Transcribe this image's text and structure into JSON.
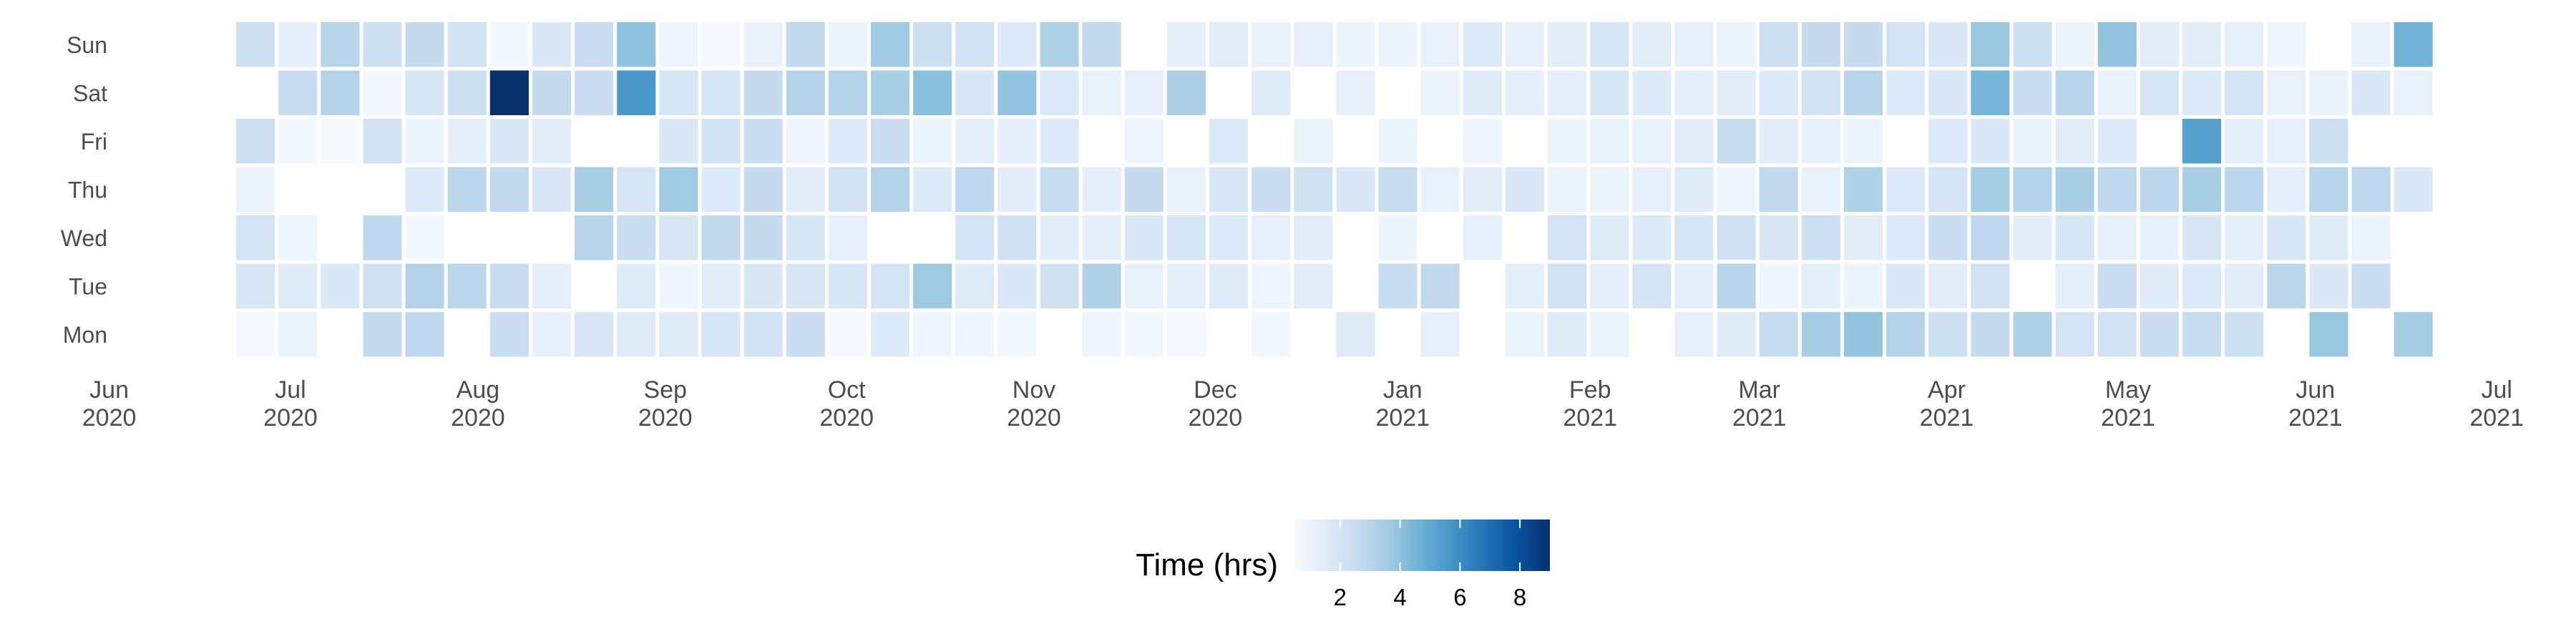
{
  "chart_data": {
    "type": "heatmap",
    "title": "",
    "rows": [
      "Sun",
      "Sat",
      "Fri",
      "Thu",
      "Wed",
      "Tue",
      "Mon"
    ],
    "x_ticks": [
      {
        "month": "Jun",
        "year": "2020",
        "date": "2020-06-01"
      },
      {
        "month": "Jul",
        "year": "2020",
        "date": "2020-07-01"
      },
      {
        "month": "Aug",
        "year": "2020",
        "date": "2020-08-01"
      },
      {
        "month": "Sep",
        "year": "2020",
        "date": "2020-09-01"
      },
      {
        "month": "Oct",
        "year": "2020",
        "date": "2020-10-01"
      },
      {
        "month": "Nov",
        "year": "2020",
        "date": "2020-11-01"
      },
      {
        "month": "Dec",
        "year": "2020",
        "date": "2020-12-01"
      },
      {
        "month": "Jan",
        "year": "2021",
        "date": "2021-01-01"
      },
      {
        "month": "Feb",
        "year": "2021",
        "date": "2021-02-01"
      },
      {
        "month": "Mar",
        "year": "2021",
        "date": "2021-03-01"
      },
      {
        "month": "Apr",
        "year": "2021",
        "date": "2021-04-01"
      },
      {
        "month": "May",
        "year": "2021",
        "date": "2021-05-01"
      },
      {
        "month": "Jun",
        "year": "2021",
        "date": "2021-06-01"
      },
      {
        "month": "Jul",
        "year": "2021",
        "date": "2021-07-01"
      }
    ],
    "week_starts": [
      "2020-06-22",
      "2020-06-29",
      "2020-07-06",
      "2020-07-13",
      "2020-07-20",
      "2020-07-27",
      "2020-08-03",
      "2020-08-10",
      "2020-08-17",
      "2020-08-24",
      "2020-08-31",
      "2020-09-07",
      "2020-09-14",
      "2020-09-21",
      "2020-09-28",
      "2020-10-05",
      "2020-10-12",
      "2020-10-19",
      "2020-10-26",
      "2020-11-02",
      "2020-11-09",
      "2020-11-16",
      "2020-11-23",
      "2020-11-30",
      "2020-12-07",
      "2020-12-14",
      "2020-12-21",
      "2020-12-28",
      "2021-01-04",
      "2021-01-11",
      "2021-01-18",
      "2021-01-25",
      "2021-02-01",
      "2021-02-08",
      "2021-02-15",
      "2021-02-22",
      "2021-03-01",
      "2021-03-08",
      "2021-03-15",
      "2021-03-22",
      "2021-03-29",
      "2021-04-05",
      "2021-04-12",
      "2021-04-19",
      "2021-04-26",
      "2021-05-03",
      "2021-05-10",
      "2021-05-17",
      "2021-05-24",
      "2021-05-31",
      "2021-06-07",
      "2021-06-14"
    ],
    "values": [
      [
        2.3,
        1.3,
        3.0,
        2.3,
        2.6,
        2.1,
        0.7,
        1.7,
        2.4,
        4.0,
        0.9,
        0.6,
        1.1,
        2.7,
        1.0,
        3.6,
        2.3,
        2.1,
        1.6,
        3.2,
        2.7,
        null,
        1.3,
        1.4,
        1.1,
        1.2,
        1.0,
        1.0,
        1.1,
        1.6,
        1.2,
        1.4,
        1.9,
        1.4,
        1.2,
        1.0,
        2.3,
        2.6,
        2.6,
        2.0,
        1.7,
        3.8,
        2.3,
        1.0,
        3.9,
        1.4,
        1.4,
        1.2,
        0.8,
        null,
        1.1,
        4.6
      ],
      [
        null,
        2.5,
        3.1,
        0.7,
        1.9,
        2.3,
        9.0,
        2.6,
        2.4,
        5.6,
        1.9,
        1.9,
        2.6,
        3.1,
        3.1,
        3.4,
        4.1,
        1.8,
        3.9,
        1.6,
        1.1,
        1.2,
        3.3,
        null,
        1.5,
        null,
        1.2,
        null,
        1.0,
        1.5,
        1.3,
        1.3,
        1.9,
        1.6,
        1.3,
        1.4,
        1.6,
        2.1,
        3.0,
        1.6,
        1.7,
        4.5,
        2.4,
        3.0,
        1.1,
        1.9,
        1.6,
        2.0,
        1.1,
        1.1,
        1.7,
        1.1
      ],
      [
        2.3,
        0.7,
        0.6,
        2.1,
        1.0,
        1.3,
        1.7,
        1.4,
        null,
        null,
        1.7,
        2.1,
        2.4,
        0.9,
        1.6,
        2.4,
        1.0,
        1.3,
        1.3,
        1.6,
        null,
        0.9,
        null,
        1.6,
        null,
        1.0,
        null,
        1.0,
        null,
        0.9,
        null,
        1.0,
        1.1,
        1.1,
        1.4,
        2.5,
        1.4,
        1.2,
        1.0,
        null,
        1.6,
        1.7,
        1.1,
        1.4,
        1.6,
        null,
        5.3,
        1.3,
        1.2,
        2.3,
        null,
        null
      ],
      [
        1.0,
        null,
        null,
        null,
        1.6,
        2.9,
        2.7,
        1.8,
        3.4,
        1.9,
        3.6,
        1.6,
        2.6,
        1.4,
        2.1,
        3.1,
        1.6,
        2.8,
        1.4,
        2.5,
        1.3,
        2.6,
        1.1,
        1.8,
        2.4,
        2.2,
        1.7,
        2.5,
        1.1,
        1.4,
        1.7,
        1.0,
        1.0,
        1.2,
        1.5,
        0.9,
        2.7,
        1.1,
        3.2,
        1.6,
        2.0,
        3.5,
        3.1,
        3.4,
        2.8,
        2.9,
        3.4,
        2.9,
        1.3,
        3.0,
        2.8,
        1.7
      ],
      [
        2.0,
        0.9,
        null,
        2.8,
        0.7,
        null,
        null,
        null,
        3.0,
        2.4,
        1.8,
        2.7,
        2.6,
        1.9,
        1.2,
        null,
        null,
        2.0,
        2.2,
        1.4,
        1.3,
        1.7,
        1.9,
        1.6,
        1.2,
        1.4,
        null,
        1.0,
        null,
        1.2,
        null,
        2.0,
        1.5,
        1.6,
        1.9,
        2.2,
        1.8,
        2.3,
        1.4,
        1.6,
        2.4,
        2.8,
        1.4,
        1.9,
        1.2,
        1.2,
        1.8,
        1.3,
        1.9,
        1.5,
        1.0,
        null
      ],
      [
        1.8,
        1.5,
        1.7,
        2.2,
        3.1,
        2.9,
        2.5,
        1.3,
        null,
        1.5,
        0.8,
        1.4,
        1.8,
        1.8,
        1.9,
        2.0,
        3.7,
        1.5,
        1.7,
        2.2,
        3.2,
        1.1,
        1.3,
        1.5,
        0.9,
        1.4,
        null,
        2.5,
        2.7,
        null,
        1.3,
        2.1,
        1.3,
        2.0,
        1.3,
        3.0,
        0.8,
        1.3,
        1.0,
        1.7,
        1.4,
        2.1,
        null,
        1.3,
        2.4,
        1.5,
        1.6,
        1.4,
        2.9,
        1.7,
        2.4,
        null
      ],
      [
        0.6,
        1.0,
        null,
        2.6,
        2.8,
        null,
        2.4,
        1.2,
        1.8,
        1.5,
        1.5,
        1.9,
        2.1,
        2.4,
        0.6,
        1.6,
        0.8,
        0.8,
        0.7,
        null,
        0.9,
        0.7,
        0.6,
        null,
        0.7,
        null,
        1.5,
        null,
        1.2,
        null,
        1.0,
        1.5,
        1.0,
        null,
        1.2,
        1.5,
        2.5,
        3.5,
        3.9,
        3.1,
        2.3,
        2.6,
        3.2,
        2.0,
        2.1,
        2.4,
        2.5,
        2.3,
        null,
        3.8,
        null,
        3.5
      ]
    ],
    "legend": {
      "title": "Time (hrs)",
      "ticks": [
        2,
        4,
        6,
        8
      ],
      "range": [
        0.5,
        9.0
      ]
    },
    "colors": [
      "#f7fbff",
      "#deebf7",
      "#c6dbef",
      "#9ecae1",
      "#6baed6",
      "#4292c6",
      "#2171b5",
      "#08519c",
      "#08306b"
    ]
  }
}
